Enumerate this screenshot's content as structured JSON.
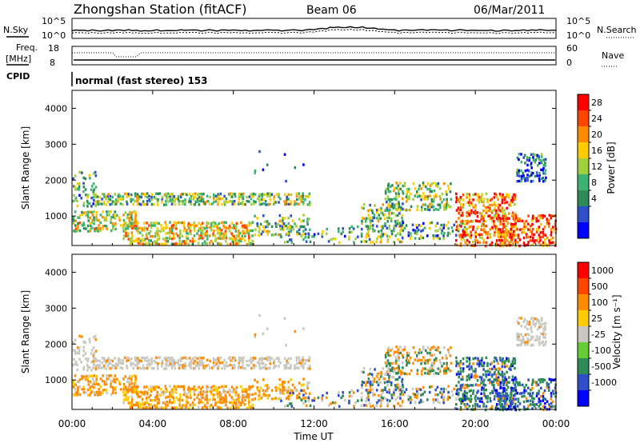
{
  "header": {
    "station": "Zhongshan Station (fitACF)",
    "beam": "Beam 06",
    "date": "06/Mar/2011"
  },
  "strip": {
    "nsky_label": "N.Sky",
    "nsearch_label": "N.Search",
    "noise_ticks": [
      "10^5",
      "10^0"
    ],
    "freq_label": "Freq.",
    "freq_unit": "[MHz]",
    "freq_ticks": [
      "18",
      "8"
    ],
    "nave_label": "Nave",
    "nave_ticks": [
      "60",
      "0"
    ],
    "cpid_label": "CPID",
    "cpid_text": "normal (fast stereo) 153"
  },
  "colors": {
    "power": [
      "#0000ff",
      "#2f4fc8",
      "#2e8b57",
      "#3cb371",
      "#a0d040",
      "#ffcc00",
      "#ff8c00",
      "#ff4500",
      "#ff0000"
    ],
    "velocity": [
      "#0000ff",
      "#2f4fc8",
      "#2e8b57",
      "#66cc33",
      "#c8c8c0",
      "#ffcc00",
      "#ff8c00",
      "#ff4500",
      "#ff0000"
    ],
    "ground_scatter": "#c8c8c0"
  },
  "chart_data": [
    {
      "type": "heatmap",
      "name": "power-panel",
      "ylabel": "Slant Range [km]",
      "yticks": [
        "4000",
        "3000",
        "2000",
        "1000"
      ],
      "ylim": [
        180,
        4500
      ],
      "xlim_hours": [
        0,
        24
      ],
      "colorbar_label": "Power [dB]",
      "colorbar_ticks": [
        "28",
        "24",
        "20",
        "16",
        "12",
        "8",
        "4"
      ]
    },
    {
      "type": "heatmap",
      "name": "velocity-panel",
      "ylabel": "Slant Range [km]",
      "yticks": [
        "4000",
        "3000",
        "2000",
        "1000"
      ],
      "ylim": [
        180,
        4500
      ],
      "xlim_hours": [
        0,
        24
      ],
      "xlabel": "Time UT",
      "xticks": [
        "00:00",
        "04:00",
        "08:00",
        "12:00",
        "16:00",
        "20:00",
        "00:00"
      ],
      "colorbar_label": "Velocity [m s⁻¹]",
      "colorbar_ticks": [
        "1000",
        "500",
        "100",
        "25",
        "-25",
        "-100",
        "-500",
        "-1000"
      ]
    }
  ]
}
